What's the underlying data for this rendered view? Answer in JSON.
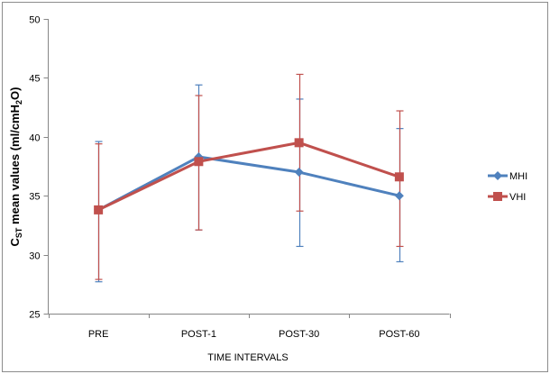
{
  "chart_data": {
    "type": "line",
    "title": "",
    "xlabel": "TIME INTERVALS",
    "ylabel": {
      "prefix": "C",
      "prefix_subscript": "ST",
      "middle": " mean values (ml/cmH",
      "subscript": "2",
      "suffix": "O)"
    },
    "ylabel_plain": "CST mean values (ml/cmH2O)",
    "ylim": [
      25,
      50
    ],
    "yticks": [
      25,
      30,
      35,
      40,
      45,
      50
    ],
    "ytick_labels": [
      "25",
      "30",
      "35",
      "40",
      "45",
      "50"
    ],
    "categories": [
      "PRE",
      "POST-1",
      "POST-30",
      "POST-60"
    ],
    "grid": false,
    "legend_position": "right",
    "series": [
      {
        "name": "MHI",
        "color": "#4F81BD",
        "marker": "diamond",
        "values": [
          33.8,
          38.3,
          37.0,
          35.0
        ],
        "error_upper": [
          39.6,
          44.4,
          43.2,
          40.7
        ],
        "error_lower": [
          27.7,
          32.1,
          30.7,
          29.4
        ]
      },
      {
        "name": "VHI",
        "color": "#C0504D",
        "marker": "square",
        "values": [
          33.8,
          37.9,
          39.5,
          36.6
        ],
        "error_upper": [
          39.4,
          43.5,
          45.3,
          42.2
        ],
        "error_lower": [
          27.9,
          32.1,
          33.7,
          30.7
        ]
      }
    ]
  }
}
